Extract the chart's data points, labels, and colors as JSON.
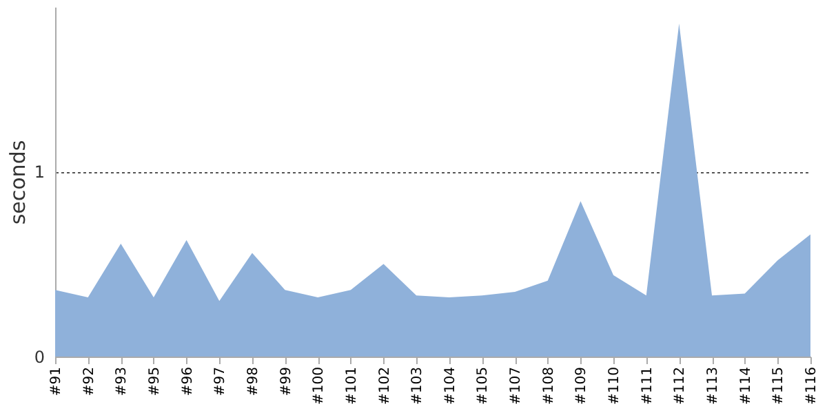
{
  "chart_data": {
    "type": "area",
    "ylabel": "seconds",
    "categories": [
      "#91",
      "#92",
      "#93",
      "#95",
      "#96",
      "#97",
      "#98",
      "#99",
      "#100",
      "#101",
      "#102",
      "#103",
      "#104",
      "#105",
      "#107",
      "#108",
      "#109",
      "#110",
      "#111",
      "#112",
      "#113",
      "#114",
      "#115",
      "#116"
    ],
    "series": [
      {
        "color": "#8fb1da",
        "values": [
          0.36,
          0.32,
          0.61,
          0.32,
          0.63,
          0.3,
          0.56,
          0.36,
          0.32,
          0.36,
          0.5,
          0.33,
          0.32,
          0.33,
          0.35,
          0.41,
          0.84,
          0.44,
          0.33,
          1.8,
          0.33,
          0.34,
          0.52,
          0.66
        ]
      }
    ],
    "ylim": [
      0,
      1.89
    ],
    "yticks": [
      0,
      1
    ],
    "grid": "y"
  }
}
